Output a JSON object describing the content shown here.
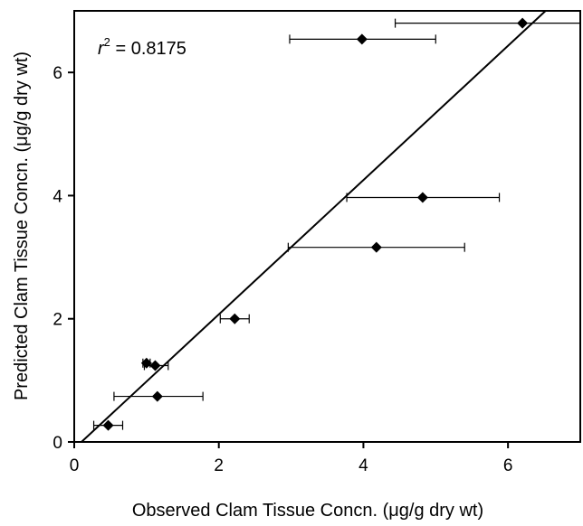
{
  "chart_data": {
    "type": "scatter",
    "title": "",
    "xlabel": "Observed Clam Tissue Concn. (μg/g dry wt)",
    "ylabel": "Predicted Clam Tissue Concn. (μg/g dry wt)",
    "xlim": [
      0,
      7
    ],
    "ylim": [
      0,
      7
    ],
    "xticks": [
      0,
      2,
      4,
      6
    ],
    "yticks": [
      0,
      2,
      4,
      6
    ],
    "grid": false,
    "annotation": {
      "label": "r",
      "superscript": "2",
      "text": " = 0.8175"
    },
    "points": [
      {
        "x": 0.47,
        "y": 0.27,
        "xerr_low": 0.27,
        "xerr_high": 0.67
      },
      {
        "x": 1.15,
        "y": 0.74,
        "xerr_low": 0.55,
        "xerr_high": 1.78
      },
      {
        "x": 1.0,
        "y": 1.28,
        "xerr_low": 0.95,
        "xerr_high": 1.05
      },
      {
        "x": 1.12,
        "y": 1.24,
        "xerr_low": 0.97,
        "xerr_high": 1.3
      },
      {
        "x": 2.22,
        "y": 2.0,
        "xerr_low": 2.02,
        "xerr_high": 2.42
      },
      {
        "x": 4.18,
        "y": 3.16,
        "xerr_low": 2.96,
        "xerr_high": 5.4
      },
      {
        "x": 4.82,
        "y": 3.97,
        "xerr_low": 3.77,
        "xerr_high": 5.88
      },
      {
        "x": 3.98,
        "y": 6.54,
        "xerr_low": 2.98,
        "xerr_high": 5.0
      },
      {
        "x": 6.2,
        "y": 6.8,
        "xerr_low": 4.44,
        "xerr_high": 7.0
      }
    ],
    "fit_line": {
      "x": [
        0.1,
        6.52
      ],
      "y": [
        0.0,
        7.0
      ]
    }
  }
}
